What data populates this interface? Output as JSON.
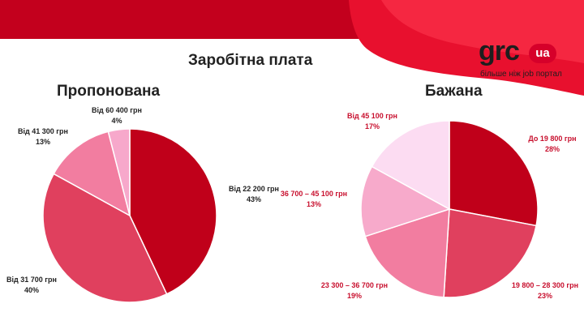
{
  "page": {
    "title": "Заробітна плата"
  },
  "logo": {
    "text": "grc",
    "badge": "ua",
    "tagline": "більше ніж job портал"
  },
  "chart_data": [
    {
      "type": "pie",
      "title": "Пропонована",
      "slices": [
        {
          "label": "Від 22 200 грн",
          "value": 43,
          "pct": "43%",
          "color": "#c0001a"
        },
        {
          "label": "Від 31 700 грн",
          "value": 40,
          "pct": "40%",
          "color": "#e0405e"
        },
        {
          "label": "Від 41 300 грн",
          "value": 13,
          "pct": "13%",
          "color": "#f27da0"
        },
        {
          "label": "Від 60 400 грн",
          "value": 4,
          "pct": "4%",
          "color": "#f7a8cb"
        }
      ]
    },
    {
      "type": "pie",
      "title": "Бажана",
      "slices": [
        {
          "label": "До 19 800 грн",
          "value": 28,
          "pct": "28%",
          "color": "#c0001a"
        },
        {
          "label": "19 800 – 28 300 грн",
          "value": 23,
          "pct": "23%",
          "color": "#e0405e"
        },
        {
          "label": "23 300 – 36 700 грн",
          "value": 19,
          "pct": "19%",
          "color": "#f27da0"
        },
        {
          "label": "36 700 – 45 100 грн",
          "value": 13,
          "pct": "13%",
          "color": "#f7aacb"
        },
        {
          "label": "Від 45 100 грн",
          "value": 17,
          "pct": "17%",
          "color": "#fcdcf2"
        }
      ]
    }
  ]
}
